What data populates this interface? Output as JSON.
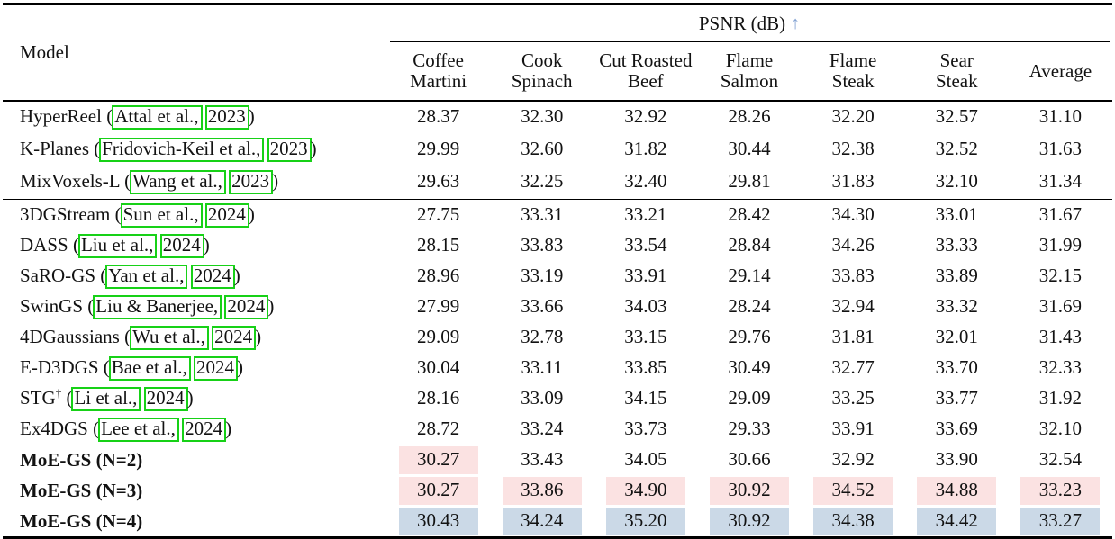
{
  "colors": {
    "link_green": "#17d117",
    "highlight_pink": "#fbe2e2",
    "highlight_blue": "#cbd9e7",
    "arrow_blue": "#84a3d3"
  },
  "table": {
    "model_header": "Model",
    "psnr_label": "PSNR (dB)",
    "arrow": "↑",
    "columns": [
      {
        "lines": [
          "Coffee",
          "Martini"
        ]
      },
      {
        "lines": [
          "Cook",
          "Spinach"
        ]
      },
      {
        "lines": [
          "Cut Roasted",
          "Beef"
        ]
      },
      {
        "lines": [
          "Flame",
          "Salmon"
        ]
      },
      {
        "lines": [
          "Flame",
          "Steak"
        ]
      },
      {
        "lines": [
          "Sear",
          "Steak"
        ]
      },
      {
        "lines": [
          "Average"
        ]
      }
    ],
    "groups": [
      {
        "rows": [
          {
            "name": "HyperReel",
            "sup": "",
            "bold": false,
            "cite_author": "Attal et al.,",
            "cite_year": "2023",
            "values": [
              "28.37",
              "32.30",
              "32.92",
              "28.26",
              "32.20",
              "32.57",
              "31.10"
            ],
            "highlights": [
              "",
              "",
              "",
              "",
              "",
              "",
              ""
            ]
          },
          {
            "name": "K-Planes",
            "sup": "",
            "bold": false,
            "cite_author": "Fridovich-Keil et al.,",
            "cite_year": "2023",
            "values": [
              "29.99",
              "32.60",
              "31.82",
              "30.44",
              "32.38",
              "32.52",
              "31.63"
            ],
            "highlights": [
              "",
              "",
              "",
              "",
              "",
              "",
              ""
            ]
          },
          {
            "name": "MixVoxels-L",
            "sup": "",
            "bold": false,
            "cite_author": "Wang et al.,",
            "cite_year": "2023",
            "values": [
              "29.63",
              "32.25",
              "32.40",
              "29.81",
              "31.83",
              "32.10",
              "31.34"
            ],
            "highlights": [
              "",
              "",
              "",
              "",
              "",
              "",
              ""
            ]
          }
        ]
      },
      {
        "rows": [
          {
            "name": "3DGStream",
            "sup": "",
            "bold": false,
            "cite_author": "Sun et al.,",
            "cite_year": "2024",
            "values": [
              "27.75",
              "33.31",
              "33.21",
              "28.42",
              "34.30",
              "33.01",
              "31.67"
            ],
            "highlights": [
              "",
              "",
              "",
              "",
              "",
              "",
              ""
            ]
          },
          {
            "name": "DASS",
            "sup": "",
            "bold": false,
            "cite_author": "Liu et al.,",
            "cite_year": "2024",
            "values": [
              "28.15",
              "33.83",
              "33.54",
              "28.84",
              "34.26",
              "33.33",
              "31.99"
            ],
            "highlights": [
              "",
              "",
              "",
              "",
              "",
              "",
              ""
            ]
          },
          {
            "name": "SaRO-GS",
            "sup": "",
            "bold": false,
            "cite_author": "Yan et al.,",
            "cite_year": "2024",
            "values": [
              "28.96",
              "33.19",
              "33.91",
              "29.14",
              "33.83",
              "33.89",
              "32.15"
            ],
            "highlights": [
              "",
              "",
              "",
              "",
              "",
              "",
              ""
            ]
          },
          {
            "name": "SwinGS",
            "sup": "",
            "bold": false,
            "cite_author": "Liu & Banerjee,",
            "cite_year": "2024",
            "values": [
              "27.99",
              "33.66",
              "34.03",
              "28.24",
              "32.94",
              "33.32",
              "31.69"
            ],
            "highlights": [
              "",
              "",
              "",
              "",
              "",
              "",
              ""
            ]
          },
          {
            "name": "4DGaussians",
            "sup": "",
            "bold": false,
            "cite_author": "Wu et al.,",
            "cite_year": "2024",
            "values": [
              "29.09",
              "32.78",
              "33.15",
              "29.76",
              "31.81",
              "32.01",
              "31.43"
            ],
            "highlights": [
              "",
              "",
              "",
              "",
              "",
              "",
              ""
            ]
          },
          {
            "name": "E-D3DGS",
            "sup": "",
            "bold": false,
            "cite_author": "Bae et al.,",
            "cite_year": "2024",
            "values": [
              "30.04",
              "33.11",
              "33.85",
              "30.49",
              "32.77",
              "33.70",
              "32.33"
            ],
            "highlights": [
              "",
              "",
              "",
              "",
              "",
              "",
              ""
            ]
          },
          {
            "name": "STG",
            "sup": "†",
            "bold": false,
            "cite_author": "Li et al.,",
            "cite_year": "2024",
            "values": [
              "28.16",
              "33.09",
              "34.15",
              "29.09",
              "33.25",
              "33.77",
              "31.92"
            ],
            "highlights": [
              "",
              "",
              "",
              "",
              "",
              "",
              ""
            ]
          },
          {
            "name": "Ex4DGS",
            "sup": "",
            "bold": false,
            "cite_author": "Lee et al.,",
            "cite_year": "2024",
            "values": [
              "28.72",
              "33.24",
              "33.73",
              "29.33",
              "33.91",
              "33.69",
              "32.10"
            ],
            "highlights": [
              "",
              "",
              "",
              "",
              "",
              "",
              ""
            ]
          },
          {
            "name": "MoE-GS (N=2)",
            "sup": "",
            "bold": true,
            "cite_author": "",
            "cite_year": "",
            "values": [
              "30.27",
              "33.43",
              "34.05",
              "30.66",
              "32.92",
              "33.90",
              "32.54"
            ],
            "highlights": [
              "pink",
              "",
              "",
              "",
              "",
              "",
              ""
            ]
          },
          {
            "name": "MoE-GS (N=3)",
            "sup": "",
            "bold": true,
            "cite_author": "",
            "cite_year": "",
            "values": [
              "30.27",
              "33.86",
              "34.90",
              "30.92",
              "34.52",
              "34.88",
              "33.23"
            ],
            "highlights": [
              "pink",
              "pink",
              "pink",
              "pink",
              "pink",
              "pink",
              "pink"
            ]
          },
          {
            "name": "MoE-GS (N=4)",
            "sup": "",
            "bold": true,
            "cite_author": "",
            "cite_year": "",
            "values": [
              "30.43",
              "34.24",
              "35.20",
              "30.92",
              "34.38",
              "34.42",
              "33.27"
            ],
            "highlights": [
              "blue",
              "blue",
              "blue",
              "blue",
              "blue",
              "blue",
              "blue"
            ]
          }
        ]
      }
    ]
  }
}
